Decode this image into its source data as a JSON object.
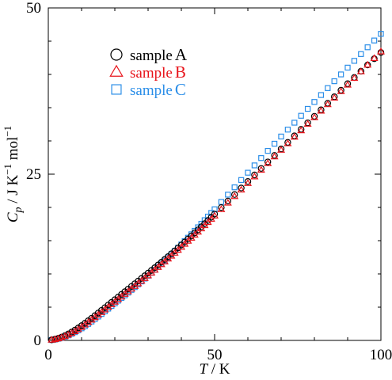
{
  "chart_data": {
    "type": "scatter",
    "xlabel": "T / K",
    "ylabel": "C_p / J K^-1 mol^-1",
    "xlim": [
      0,
      100
    ],
    "ylim": [
      0,
      50
    ],
    "xticks": [
      0,
      50,
      100
    ],
    "yticks": [
      0,
      25,
      50
    ],
    "tick_labels": {
      "x": [
        "0",
        "50",
        "100"
      ],
      "y": [
        "0",
        "25",
        "50"
      ]
    },
    "grid": false,
    "legend_position": "top-left",
    "series": [
      {
        "name": "sample A",
        "legend_prefix": "sample",
        "legend_suffix": "A",
        "marker": "circle",
        "color": "#000000",
        "x": [
          1,
          2,
          3,
          4,
          5,
          6,
          7,
          8,
          9,
          10,
          11,
          12,
          13,
          14,
          15,
          16,
          17,
          18,
          19,
          20,
          21,
          22,
          23,
          24,
          25,
          26,
          27,
          28,
          29,
          30,
          31,
          32,
          33,
          34,
          35,
          36,
          37,
          38,
          39,
          40,
          41,
          42,
          43,
          44,
          45,
          46,
          47,
          48,
          49,
          50,
          52,
          54,
          56,
          58,
          60,
          62,
          64,
          66,
          68,
          70,
          72,
          74,
          76,
          78,
          80,
          82,
          84,
          86,
          88,
          90,
          92,
          94,
          96,
          98,
          100
        ],
        "y": [
          0.08,
          0.18,
          0.32,
          0.5,
          0.72,
          0.97,
          1.25,
          1.55,
          1.88,
          2.22,
          2.58,
          2.95,
          3.33,
          3.72,
          4.12,
          4.52,
          4.92,
          5.32,
          5.72,
          6.12,
          6.52,
          6.92,
          7.32,
          7.72,
          8.12,
          8.52,
          8.92,
          9.32,
          9.72,
          10.12,
          10.52,
          10.93,
          11.34,
          11.76,
          12.18,
          12.6,
          13.03,
          13.46,
          13.9,
          14.34,
          14.79,
          15.24,
          15.7,
          16.16,
          16.62,
          17.09,
          17.56,
          18.04,
          18.52,
          19.0,
          19.98,
          20.96,
          21.94,
          22.92,
          23.9,
          24.88,
          25.86,
          26.84,
          27.82,
          28.8,
          29.78,
          30.76,
          31.74,
          32.72,
          33.7,
          34.68,
          35.66,
          36.64,
          37.62,
          38.6,
          39.54,
          40.48,
          41.42,
          42.36,
          43.3
        ]
      },
      {
        "name": "sample B",
        "legend_prefix": "sample",
        "legend_suffix": "B",
        "marker": "triangle",
        "color": "#e8141b",
        "x": [
          1,
          2,
          3,
          4,
          5,
          6,
          7,
          8,
          9,
          10,
          11,
          12,
          13,
          14,
          15,
          16,
          17,
          18,
          19,
          20,
          21,
          22,
          23,
          24,
          25,
          26,
          27,
          28,
          29,
          30,
          31,
          32,
          33,
          34,
          35,
          36,
          37,
          38,
          39,
          40,
          41,
          42,
          43,
          44,
          45,
          46,
          47,
          48,
          49,
          50,
          52,
          54,
          56,
          58,
          60,
          62,
          64,
          66,
          68,
          70,
          72,
          74,
          76,
          78,
          80,
          82,
          84,
          86,
          88,
          90,
          92,
          94,
          96,
          98,
          100
        ],
        "y": [
          0.06,
          0.14,
          0.26,
          0.41,
          0.6,
          0.82,
          1.07,
          1.35,
          1.66,
          1.99,
          2.34,
          2.7,
          3.07,
          3.45,
          3.83,
          4.22,
          4.61,
          5.0,
          5.39,
          5.78,
          6.17,
          6.56,
          6.95,
          7.34,
          7.74,
          8.14,
          8.54,
          8.94,
          9.34,
          9.74,
          10.16,
          10.58,
          11.0,
          11.42,
          11.84,
          12.27,
          12.7,
          13.14,
          13.58,
          14.02,
          14.48,
          14.94,
          15.4,
          15.86,
          16.32,
          16.8,
          17.28,
          17.76,
          18.24,
          18.72,
          19.7,
          20.68,
          21.66,
          22.64,
          23.62,
          24.62,
          25.62,
          26.62,
          27.62,
          28.62,
          29.6,
          30.58,
          31.56,
          32.54,
          33.52,
          34.5,
          35.48,
          36.46,
          37.44,
          38.42,
          39.42,
          40.42,
          41.42,
          42.42,
          43.42
        ]
      },
      {
        "name": "sample C",
        "legend_prefix": "sample",
        "legend_suffix": "C",
        "marker": "square",
        "color": "#2b8ee8",
        "x": [
          1,
          2,
          3,
          4,
          5,
          6,
          7,
          8,
          9,
          10,
          11,
          12,
          13,
          14,
          15,
          16,
          17,
          18,
          19,
          20,
          21,
          22,
          23,
          24,
          25,
          26,
          27,
          28,
          29,
          30,
          31,
          32,
          33,
          34,
          35,
          36,
          37,
          38,
          39,
          40,
          41,
          42,
          43,
          44,
          45,
          46,
          47,
          48,
          49,
          50,
          52,
          54,
          56,
          58,
          60,
          62,
          64,
          66,
          68,
          70,
          72,
          74,
          76,
          78,
          80,
          82,
          84,
          86,
          88,
          90,
          92,
          94,
          96,
          98,
          100
        ],
        "y": [
          0.06,
          0.14,
          0.25,
          0.39,
          0.56,
          0.76,
          0.99,
          1.24,
          1.52,
          1.82,
          2.14,
          2.48,
          2.84,
          3.21,
          3.59,
          3.98,
          4.38,
          4.78,
          5.18,
          5.58,
          5.98,
          6.38,
          6.78,
          7.19,
          7.6,
          8.02,
          8.44,
          8.87,
          9.3,
          9.73,
          10.17,
          10.62,
          11.07,
          11.53,
          12.0,
          12.47,
          12.95,
          13.44,
          13.93,
          14.43,
          14.93,
          15.44,
          15.96,
          16.48,
          17.01,
          17.54,
          18.08,
          18.62,
          19.17,
          19.72,
          20.82,
          21.92,
          23.02,
          24.12,
          25.22,
          26.32,
          27.42,
          28.5,
          29.58,
          30.66,
          31.7,
          32.74,
          33.78,
          34.82,
          35.86,
          36.9,
          37.94,
          38.98,
          40.0,
          41.02,
          42.04,
          43.06,
          44.08,
          45.1,
          46.1
        ]
      }
    ]
  }
}
